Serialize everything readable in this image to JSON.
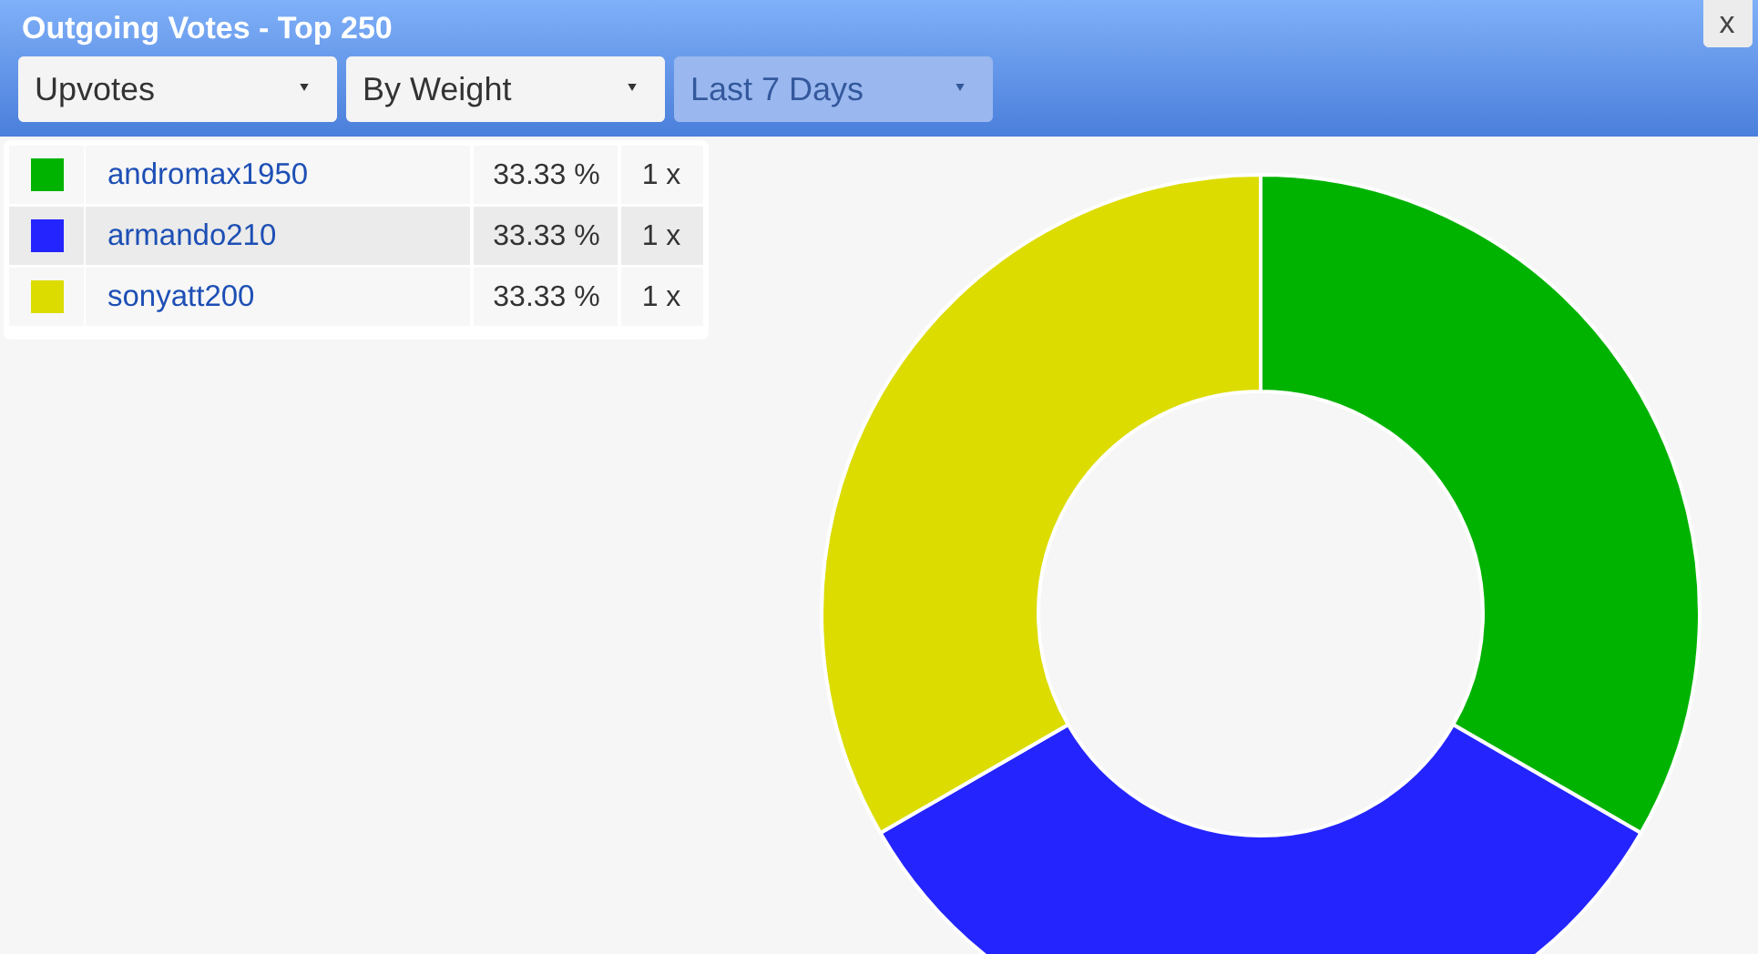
{
  "chart_data": {
    "type": "donut",
    "title": "Outgoing Votes - Top 250",
    "categories": [
      "andromax1950",
      "armando210",
      "sonyatt200"
    ],
    "values": [
      33.33,
      33.33,
      33.33
    ],
    "colors": [
      "#00b300",
      "#2424ff",
      "#dcdc00"
    ],
    "value_labels": [
      "33.33 %",
      "33.33 %",
      "33.33 %"
    ],
    "legend": "top left",
    "annotations": [
      "Upvotes",
      "By Weight",
      "Last 7 Days",
      "x",
      "1 x",
      "1 x",
      "1 x"
    ]
  }
}
